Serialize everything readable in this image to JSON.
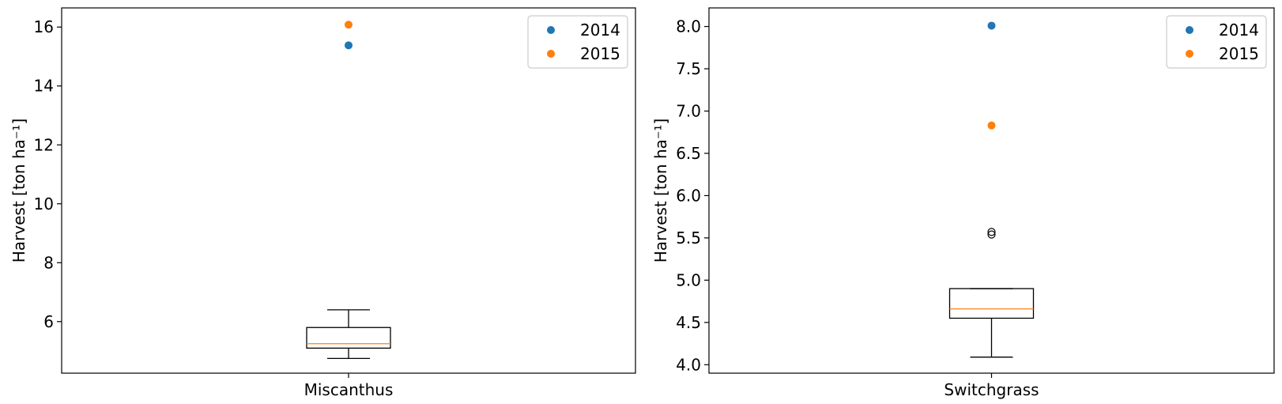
{
  "chart_data": [
    {
      "type": "box",
      "category": "Miscanthus",
      "xlabel": "Miscanthus",
      "ylabel": "Harvest [ton ha⁻¹]",
      "ylim": [
        4.25,
        16.65
      ],
      "yticks": [
        6,
        8,
        10,
        12,
        14,
        16
      ],
      "grid": false,
      "legend_position": "top-right",
      "box": {
        "whisker_low": 4.75,
        "q1": 5.1,
        "median": 5.25,
        "q3": 5.8,
        "whisker_high": 6.4
      },
      "outliers": [],
      "scatter_series": [
        {
          "name": "2014",
          "color": "#1f77b4",
          "value": 15.38
        },
        {
          "name": "2015",
          "color": "#ff7f0e",
          "value": 16.08
        }
      ]
    },
    {
      "type": "box",
      "category": "Switchgrass",
      "xlabel": "Switchgrass",
      "ylabel": "Harvest [ton ha⁻¹]",
      "ylim": [
        3.9,
        8.22
      ],
      "yticks": [
        4.0,
        4.5,
        5.0,
        5.5,
        6.0,
        6.5,
        7.0,
        7.5,
        8.0
      ],
      "grid": false,
      "legend_position": "top-right",
      "box": {
        "whisker_low": 4.09,
        "q1": 4.55,
        "median": 4.66,
        "q3": 4.9,
        "whisker_high": 4.9
      },
      "outliers": [
        5.54,
        5.57
      ],
      "scatter_series": [
        {
          "name": "2014",
          "color": "#1f77b4",
          "value": 8.01
        },
        {
          "name": "2015",
          "color": "#ff7f0e",
          "value": 6.83
        }
      ]
    }
  ],
  "style": {
    "box_color": "#000000",
    "median_color": "#ff7f0e",
    "legend_border": "#cccccc"
  }
}
